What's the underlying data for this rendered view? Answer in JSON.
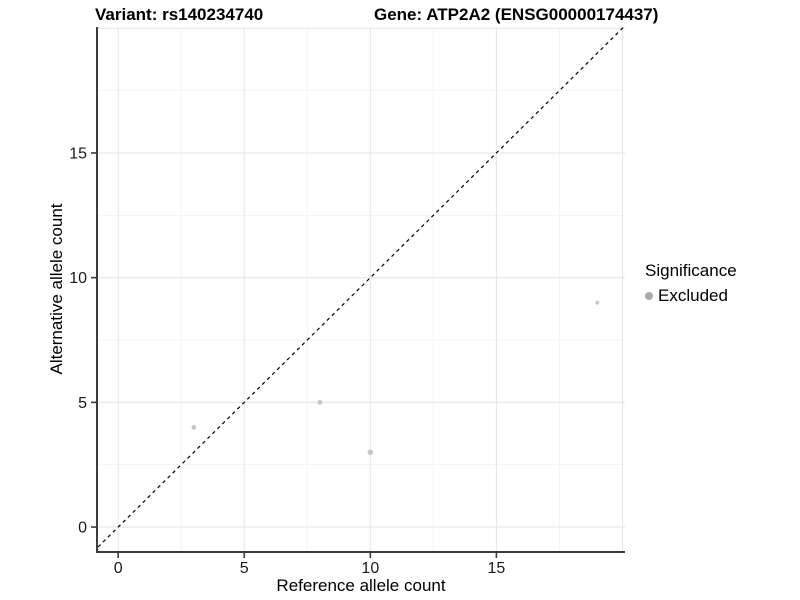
{
  "titles": {
    "variant": "Variant: rs140234740",
    "gene": "Gene: ATP2A2 (ENSG00000174437)"
  },
  "axes": {
    "x_label": "Reference allele count",
    "y_label": "Alternative allele count",
    "x_tick_labels": [
      "0",
      "5",
      "10",
      "15"
    ],
    "y_tick_labels": [
      "0",
      "5",
      "10",
      "15"
    ]
  },
  "legend": {
    "title": "Significance",
    "items": [
      {
        "label": "Excluded",
        "color": "#a9a9a9"
      }
    ]
  },
  "colors": {
    "point": "#c6c6c6",
    "legend_dot": "#a9a9a9",
    "grid_major": "#e6e6e6",
    "grid_minor": "#f2f2f2",
    "axis_line": "#3c3c3c",
    "tick_text": "#1a1a1a",
    "identity_line": "#000000",
    "background": "#ffffff"
  },
  "chart_data": {
    "type": "scatter",
    "title": "Variant: rs140234740 | Gene: ATP2A2 (ENSG00000174437)",
    "xlabel": "Reference allele count",
    "ylabel": "Alternative allele count",
    "points": [
      {
        "x": 3,
        "y": 4,
        "r": 2.4
      },
      {
        "x": 8,
        "y": 5,
        "r": 2.4
      },
      {
        "x": 10,
        "y": 3,
        "r": 2.8
      },
      {
        "x": 19,
        "y": 9,
        "r": 2.0
      }
    ],
    "series_name": "Excluded",
    "x_ticks": [
      0,
      5,
      10,
      15
    ],
    "y_ticks": [
      0,
      5,
      10,
      15
    ],
    "x_major_grid": [
      0,
      5,
      10,
      15,
      20
    ],
    "y_major_grid": [
      0,
      5,
      10,
      15,
      20
    ],
    "x_minor_grid": [
      2.5,
      7.5,
      12.5,
      17.5
    ],
    "y_minor_grid": [
      2.5,
      7.5,
      12.5,
      17.5
    ],
    "xlim": [
      -0.8,
      20.1
    ],
    "ylim": [
      -0.96,
      20.05
    ],
    "identity_line": true,
    "grid": true,
    "legend_position": "right"
  }
}
